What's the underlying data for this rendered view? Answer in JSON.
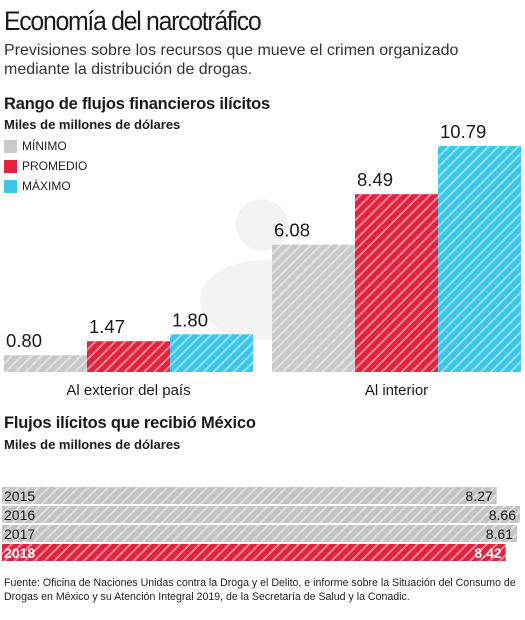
{
  "title": "Economía del narcotráfico",
  "subtitle": "Previsiones sobre los recursos que mueve el crimen organizado mediante la distribución de drogas.",
  "colors": {
    "minimo": "#c9c9c9",
    "promedio": "#e0233f",
    "maximo": "#3cc6ea",
    "grey_bar": "#c4c4c4",
    "highlight": "#e0233f"
  },
  "chart_data": [
    {
      "type": "bar",
      "title": "Rango de flujos financieros ilícitos",
      "subtitle": "Miles de millones de dólares",
      "categories": [
        "Al exterior del país",
        "Al interior"
      ],
      "series": [
        {
          "name": "MÍNIMO",
          "values": [
            0.8,
            6.08
          ]
        },
        {
          "name": "PROMEDIO",
          "values": [
            1.47,
            8.49
          ]
        },
        {
          "name": "MÁXIMO",
          "values": [
            1.8,
            10.79
          ]
        }
      ],
      "value_labels": [
        [
          "0.80",
          "1.47",
          "1.80"
        ],
        [
          "6.08",
          "8.49",
          "10.79"
        ]
      ],
      "legend_position": "top-left",
      "grid": false
    },
    {
      "type": "bar",
      "orientation": "horizontal",
      "title": "Flujos ilícitos que recibió México",
      "subtitle": "Miles de millones de dólares",
      "categories": [
        "2015",
        "2016",
        "2017",
        "2018"
      ],
      "values": [
        8.27,
        8.66,
        8.61,
        8.42
      ],
      "value_labels": [
        "8.27",
        "8.66",
        "8.61",
        "8.42"
      ],
      "highlight": "2018",
      "grid": false
    }
  ],
  "source": "Fuente: Oficina de Naciones Unidas contra la Droga y el Delito, e informe sobre la Situación del Consumo de Drogas en México y su Atención Integral 2019, de la Secretaría de Salud y la Conadic."
}
